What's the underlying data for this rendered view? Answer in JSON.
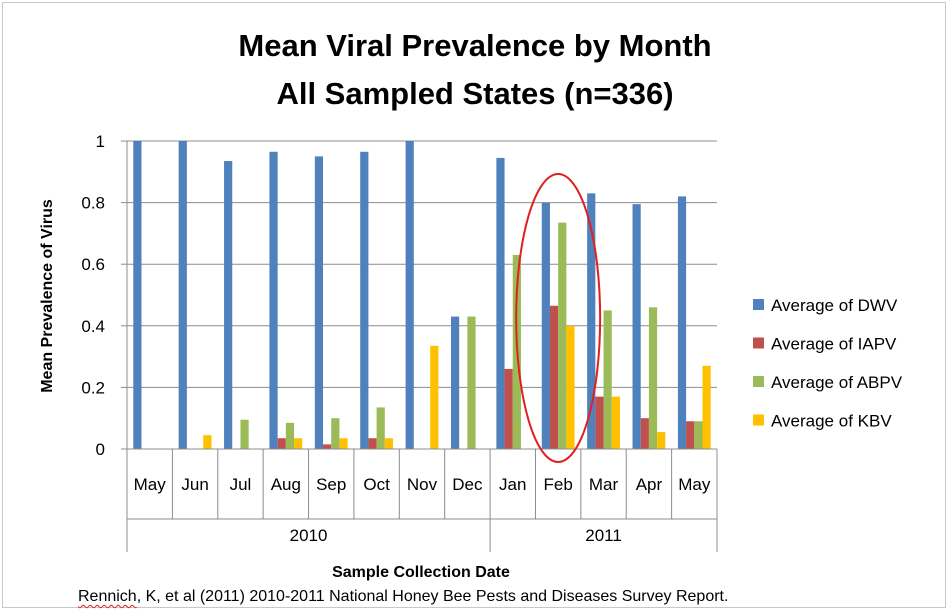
{
  "chart_data": {
    "type": "bar",
    "title": "Mean Viral Prevalence by Month",
    "subtitle": "All Sampled States (n=336)",
    "xlabel": "Sample Collection Date",
    "ylabel": "Mean Prevalence of Virus",
    "ylim": [
      0,
      1
    ],
    "yticks": [
      "0",
      "0.2",
      "0.4",
      "0.6",
      "0.8",
      "1"
    ],
    "grid": true,
    "legend_position": "right",
    "categories": [
      "May",
      "Jun",
      "Jul",
      "Aug",
      "Sep",
      "Oct",
      "Nov",
      "Dec",
      "Jan",
      "Feb",
      "Mar",
      "Apr",
      "May"
    ],
    "groups": [
      {
        "label": "2010",
        "span": 8
      },
      {
        "label": "2011",
        "span": 5
      }
    ],
    "series": [
      {
        "name": "Average of DWV",
        "color": "#4f81bd",
        "values": [
          1.0,
          1.0,
          0.935,
          0.965,
          0.95,
          0.965,
          1.0,
          0.43,
          0.945,
          0.8,
          0.83,
          0.795,
          0.82
        ]
      },
      {
        "name": "Average of IAPV",
        "color": "#c0504d",
        "values": [
          0,
          0,
          0,
          0.035,
          0.015,
          0.035,
          0,
          0,
          0.26,
          0.465,
          0.17,
          0.1,
          0.09
        ]
      },
      {
        "name": "Average of ABPV",
        "color": "#9bbb59",
        "values": [
          0,
          0,
          0.095,
          0.085,
          0.1,
          0.135,
          0,
          0.43,
          0.63,
          0.735,
          0.45,
          0.46,
          0.09
        ]
      },
      {
        "name": "Average of KBV",
        "color": "#ffc000",
        "values": [
          0,
          0.045,
          0,
          0.035,
          0.035,
          0.035,
          0.335,
          0,
          0,
          0.4,
          0.17,
          0.055,
          0.27
        ]
      }
    ],
    "annotation": {
      "type": "ellipse",
      "target_category_index": 9,
      "color": "#e02020"
    }
  },
  "citation": {
    "author": "Rennich",
    "rest": ", K, et al (2011) 2010-2011  National Honey Bee Pests and Diseases Survey Report."
  }
}
